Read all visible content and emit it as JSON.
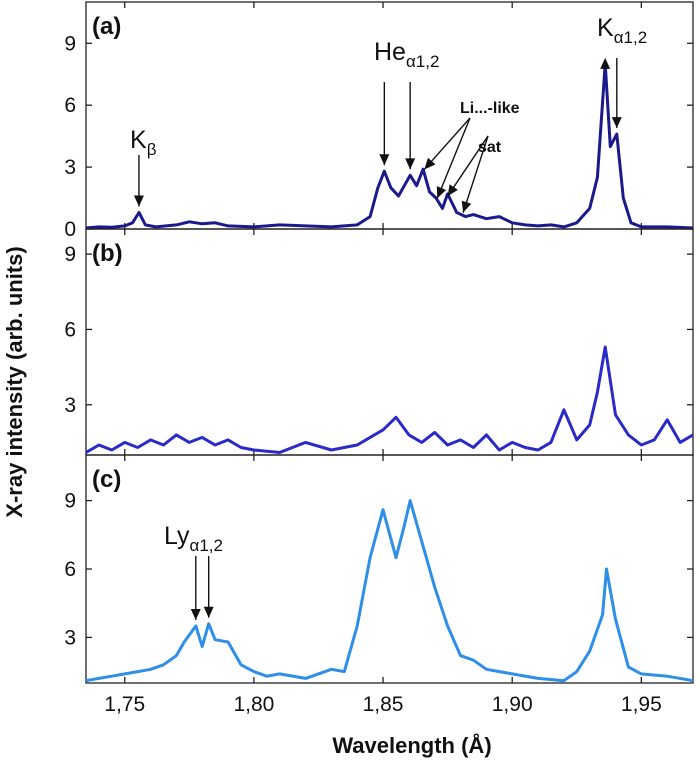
{
  "chart_data": {
    "type": "line",
    "xlabel": "Wavelength (Å)",
    "ylabel": "X-ray intensity (arb. units)",
    "xlim": [
      1.735,
      1.97
    ],
    "x_ticks": [
      "1,75",
      "1,80",
      "1,85",
      "1,90",
      "1,95"
    ],
    "panels": [
      {
        "label": "(a)",
        "color": "#1a1a8c",
        "ylim": [
          0,
          11
        ],
        "y_ticks": [
          "0",
          "3",
          "6",
          "9"
        ],
        "annotations": [
          {
            "text": "K",
            "sub": "β",
            "x": 1.7555,
            "y": 0.8
          },
          {
            "text": "He",
            "sub": "α1,2",
            "x": [
              1.8505,
              1.8605
            ],
            "y": [
              2.8,
              2.6
            ]
          },
          {
            "text": "K",
            "sub": "α1,2",
            "x": [
              1.936,
              1.9405
            ],
            "y": [
              8.0,
              4.6
            ]
          },
          {
            "text": "Li...-like",
            "x": [
              1.866,
              1.871
            ],
            "y": [
              2.6,
              1.2
            ]
          },
          {
            "text": "sat",
            "x": [
              1.875,
              1.881
            ],
            "y": [
              1.3,
              0.5
            ]
          }
        ],
        "series": [
          {
            "x": [
              1.735,
              1.74,
              1.745,
              1.75,
              1.753,
              1.7555,
              1.758,
              1.762,
              1.77,
              1.775,
              1.78,
              1.785,
              1.79,
              1.8,
              1.81,
              1.82,
              1.83,
              1.84,
              1.845,
              1.848,
              1.8505,
              1.853,
              1.856,
              1.8605,
              1.863,
              1.8655,
              1.868,
              1.8705,
              1.873,
              1.875,
              1.8785,
              1.882,
              1.885,
              1.89,
              1.895,
              1.9,
              1.905,
              1.91,
              1.915,
              1.92,
              1.925,
              1.93,
              1.933,
              1.936,
              1.938,
              1.9405,
              1.943,
              1.946,
              1.95,
              1.96,
              1.97
            ],
            "y": [
              0.05,
              0.1,
              0.08,
              0.15,
              0.3,
              0.8,
              0.2,
              0.1,
              0.2,
              0.35,
              0.25,
              0.3,
              0.15,
              0.1,
              0.2,
              0.15,
              0.1,
              0.2,
              0.6,
              2.0,
              2.8,
              2.0,
              1.6,
              2.6,
              2.1,
              2.9,
              1.8,
              1.5,
              1.0,
              1.7,
              0.8,
              0.6,
              0.7,
              0.5,
              0.6,
              0.3,
              0.2,
              0.15,
              0.2,
              0.1,
              0.3,
              1.0,
              2.5,
              8.0,
              4.0,
              4.6,
              1.5,
              0.3,
              0.1,
              0.1,
              0.05
            ]
          }
        ]
      },
      {
        "label": "(b)",
        "color": "#2a2ac8",
        "ylim": [
          1.0,
          10.0
        ],
        "y_ticks": [
          "3",
          "6",
          "9"
        ],
        "series": [
          {
            "x": [
              1.735,
              1.74,
              1.745,
              1.75,
              1.755,
              1.76,
              1.765,
              1.77,
              1.775,
              1.78,
              1.785,
              1.79,
              1.795,
              1.8,
              1.81,
              1.82,
              1.83,
              1.84,
              1.845,
              1.85,
              1.855,
              1.86,
              1.865,
              1.87,
              1.875,
              1.88,
              1.885,
              1.89,
              1.895,
              1.9,
              1.905,
              1.91,
              1.915,
              1.92,
              1.925,
              1.93,
              1.933,
              1.936,
              1.94,
              1.945,
              1.95,
              1.955,
              1.96,
              1.965,
              1.97
            ],
            "y": [
              1.1,
              1.4,
              1.2,
              1.5,
              1.3,
              1.6,
              1.4,
              1.8,
              1.5,
              1.7,
              1.4,
              1.6,
              1.3,
              1.2,
              1.1,
              1.5,
              1.2,
              1.4,
              1.7,
              2.0,
              2.5,
              1.8,
              1.5,
              1.9,
              1.4,
              1.6,
              1.3,
              1.8,
              1.2,
              1.5,
              1.3,
              1.2,
              1.5,
              2.8,
              1.6,
              2.2,
              3.5,
              5.3,
              2.6,
              1.8,
              1.4,
              1.6,
              2.4,
              1.5,
              1.8
            ]
          }
        ]
      },
      {
        "label": "(c)",
        "color": "#2e8ee8",
        "ylim": [
          1.0,
          11.0
        ],
        "y_ticks": [
          "3",
          "6",
          "9"
        ],
        "annotations": [
          {
            "text": "Ly",
            "sub": "α1,2",
            "x": [
              1.7775,
              1.7825
            ],
            "y": [
              3.5,
              3.6
            ]
          }
        ],
        "series": [
          {
            "x": [
              1.735,
              1.74,
              1.745,
              1.75,
              1.755,
              1.76,
              1.765,
              1.77,
              1.773,
              1.7775,
              1.78,
              1.7825,
              1.785,
              1.79,
              1.795,
              1.8,
              1.805,
              1.81,
              1.82,
              1.83,
              1.835,
              1.84,
              1.845,
              1.85,
              1.855,
              1.858,
              1.8605,
              1.863,
              1.866,
              1.87,
              1.875,
              1.88,
              1.885,
              1.89,
              1.9,
              1.91,
              1.92,
              1.925,
              1.93,
              1.935,
              1.9365,
              1.94,
              1.945,
              1.95,
              1.96,
              1.97
            ],
            "y": [
              1.1,
              1.2,
              1.3,
              1.4,
              1.5,
              1.6,
              1.8,
              2.2,
              2.8,
              3.5,
              2.6,
              3.6,
              2.9,
              2.8,
              1.8,
              1.5,
              1.3,
              1.4,
              1.2,
              1.6,
              1.5,
              3.5,
              6.5,
              8.6,
              6.5,
              7.8,
              9.0,
              8.0,
              6.8,
              5.2,
              3.5,
              2.2,
              2.0,
              1.6,
              1.4,
              1.2,
              1.1,
              1.5,
              2.4,
              4.0,
              6.0,
              3.8,
              1.7,
              1.4,
              1.3,
              1.1
            ]
          }
        ]
      }
    ]
  }
}
